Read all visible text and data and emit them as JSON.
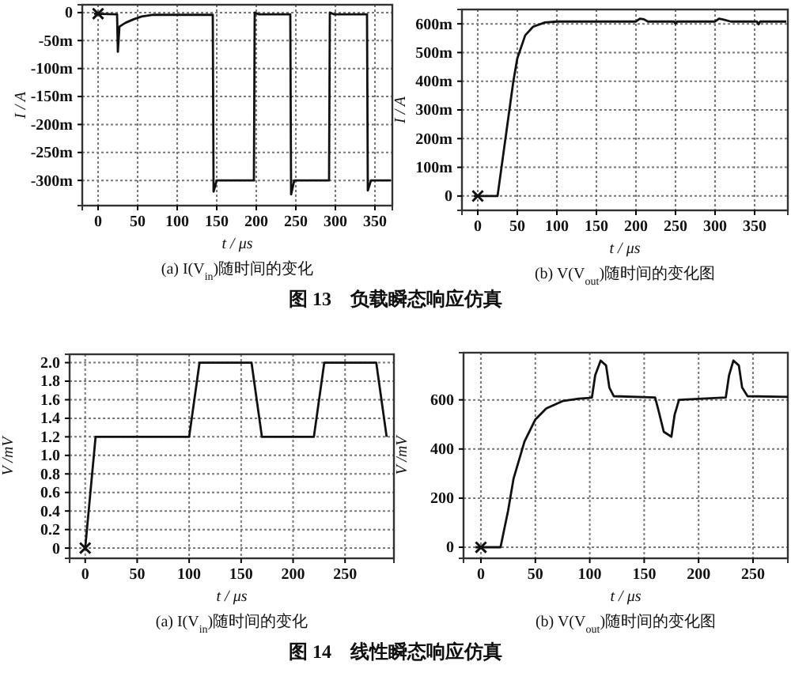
{
  "chart_data": [
    {
      "type": "line",
      "title": "(a) I(V$_{in}$)随时间的变化",
      "xlabel": "t / μs",
      "ylabel": "I / A",
      "xlim": [
        -20,
        372
      ],
      "ylim": [
        -345,
        14
      ],
      "xticks": [
        0,
        50,
        100,
        150,
        200,
        250,
        300,
        350
      ],
      "yticks": [
        0,
        {
          "value": -50,
          "label": "-50m"
        },
        {
          "value": -100,
          "label": "-100m"
        },
        {
          "value": -150,
          "label": "-150m"
        },
        {
          "value": -200,
          "label": "-200m"
        },
        {
          "value": -250,
          "label": "-250m"
        },
        {
          "value": -300,
          "label": "-300m"
        }
      ],
      "grid": true,
      "annotations": [
        "图 13　负载瞬态响应仿真"
      ],
      "series": [
        {
          "color": "#111111",
          "x": [
            -5,
            24,
            25,
            27,
            35,
            45,
            55,
            70,
            145,
            146,
            150,
            197,
            198,
            203,
            243,
            244,
            248,
            292,
            293,
            298,
            340,
            341,
            345,
            370
          ],
          "values": [
            -2,
            -3,
            -70,
            -25,
            -18,
            -12,
            -7,
            -4,
            -4,
            -320,
            -300,
            -300,
            0,
            -3,
            -3,
            -325,
            -300,
            -300,
            0,
            -3,
            -3,
            -318,
            -300,
            -300
          ]
        },
        {
          "type": "scatter",
          "marker": "cross",
          "color": "#111111",
          "x": [
            0
          ],
          "values": [
            -2
          ]
        }
      ]
    },
    {
      "type": "line",
      "title": "(b) V(V$_{out}$)随时间的变化图",
      "xlabel": "t / μs",
      "ylabel": "I / A",
      "xlim": [
        -20,
        392
      ],
      "ylim": [
        -50,
        650
      ],
      "xticks": [
        0,
        50,
        100,
        150,
        200,
        250,
        300,
        350
      ],
      "yticks": [
        0,
        {
          "value": 100,
          "label": "100m"
        },
        {
          "value": 200,
          "label": "200m"
        },
        {
          "value": 300,
          "label": "300m"
        },
        {
          "value": 400,
          "label": "400m"
        },
        {
          "value": 500,
          "label": "500m"
        },
        {
          "value": 600,
          "label": "600m"
        }
      ],
      "grid": true,
      "series": [
        {
          "color": "#111111",
          "x": [
            -5,
            25,
            30,
            35,
            40,
            45,
            50,
            60,
            70,
            85,
            100,
            200,
            205,
            210,
            215,
            248,
            250,
            252,
            300,
            305,
            310,
            320,
            353,
            355,
            357,
            390
          ],
          "values": [
            0,
            0,
            100,
            200,
            300,
            400,
            480,
            560,
            590,
            605,
            608,
            608,
            618,
            616,
            608,
            608,
            600,
            608,
            608,
            618,
            615,
            608,
            608,
            598,
            608,
            608
          ]
        },
        {
          "type": "scatter",
          "marker": "cross",
          "color": "#111111",
          "x": [
            0
          ],
          "values": [
            0
          ]
        }
      ]
    },
    {
      "type": "line",
      "title": "(a) I(V$_{in}$)随时间的变化",
      "xlabel": "t / μs",
      "ylabel": "V /mV",
      "xlim": [
        -15,
        297
      ],
      "ylim": [
        -0.11,
        2.09
      ],
      "xticks": [
        0,
        50,
        100,
        150,
        200,
        250
      ],
      "yticks": [
        0,
        0.2,
        0.4,
        0.6,
        0.8,
        {
          "value": 1,
          "label": "1.0"
        },
        1.2,
        1.4,
        1.6,
        1.8,
        {
          "value": 2,
          "label": "2.0"
        }
      ],
      "grid": true,
      "annotations": [
        "图 14　线性瞬态响应仿真"
      ],
      "series": [
        {
          "color": "#111111",
          "x": [
            0,
            10,
            100,
            110,
            160,
            170,
            220,
            230,
            280,
            290
          ],
          "values": [
            0,
            1.2,
            1.2,
            2,
            2,
            1.2,
            1.2,
            2,
            2,
            1.2
          ]
        },
        {
          "type": "scatter",
          "marker": "cross",
          "color": "#111111",
          "x": [
            0
          ],
          "values": [
            0
          ]
        }
      ]
    },
    {
      "type": "line",
      "title": "(b) V(V$_{out}$)随时间的变化图",
      "xlabel": "t / μs",
      "ylabel": "V /mV",
      "xlim": [
        -16,
        282
      ],
      "ylim": [
        -45,
        792
      ],
      "xticks": [
        0,
        50,
        100,
        150,
        200,
        250
      ],
      "yticks": [
        0,
        200,
        400,
        600
      ],
      "grid": true,
      "series": [
        {
          "color": "#111111",
          "x": [
            -5,
            18,
            25,
            30,
            40,
            50,
            60,
            75,
            90,
            100,
            102,
            105,
            110,
            115,
            118,
            122,
            160,
            163,
            168,
            175,
            178,
            182,
            225,
            228,
            232,
            237,
            240,
            245,
            282
          ],
          "values": [
            0,
            0,
            150,
            280,
            430,
            520,
            565,
            595,
            605,
            608,
            610,
            700,
            760,
            740,
            650,
            615,
            610,
            560,
            470,
            450,
            540,
            600,
            610,
            700,
            760,
            740,
            650,
            615,
            612
          ]
        },
        {
          "type": "scatter",
          "marker": "cross",
          "color": "#111111",
          "x": [
            0
          ],
          "values": [
            0
          ]
        }
      ]
    }
  ]
}
